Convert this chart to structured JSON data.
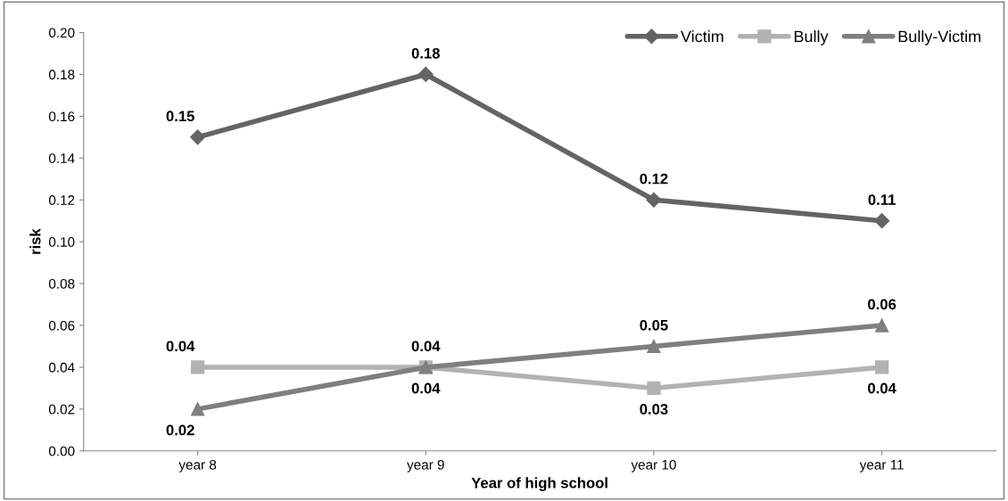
{
  "chart_data": {
    "type": "line",
    "xlabel": "Year of high school",
    "ylabel": "risk",
    "categories": [
      "year 8",
      "year 9",
      "year 10",
      "year 11"
    ],
    "series": [
      {
        "name": "Victim",
        "color": "#646464",
        "marker": "diamond",
        "values": [
          0.15,
          0.18,
          0.12,
          0.11
        ]
      },
      {
        "name": "Bully",
        "color": "#b2b2b2",
        "marker": "square",
        "values": [
          0.04,
          0.04,
          0.03,
          0.04
        ]
      },
      {
        "name": "Bully-Victim",
        "color": "#7f7f7f",
        "marker": "triangle",
        "values": [
          0.02,
          0.04,
          0.05,
          0.06
        ]
      }
    ],
    "ylim": [
      0,
      0.2
    ],
    "yticks": [
      {
        "value": 0,
        "label": "0.00"
      },
      {
        "value": 0.02,
        "label": "0.02"
      },
      {
        "value": 0.04,
        "label": "0.04"
      },
      {
        "value": 0.06,
        "label": "0.06"
      },
      {
        "value": 0.08,
        "label": "0.08"
      },
      {
        "value": 0.1,
        "label": "0.10"
      },
      {
        "value": 0.12,
        "label": "0.12"
      },
      {
        "value": 0.14,
        "label": "0.14"
      },
      {
        "value": 0.16,
        "label": "0.16"
      },
      {
        "value": 0.18,
        "label": "0.18"
      },
      {
        "value": 0.2,
        "label": "0.20"
      }
    ],
    "data_labels": true,
    "legend": "top right",
    "grid": false,
    "line_style": "solid"
  }
}
